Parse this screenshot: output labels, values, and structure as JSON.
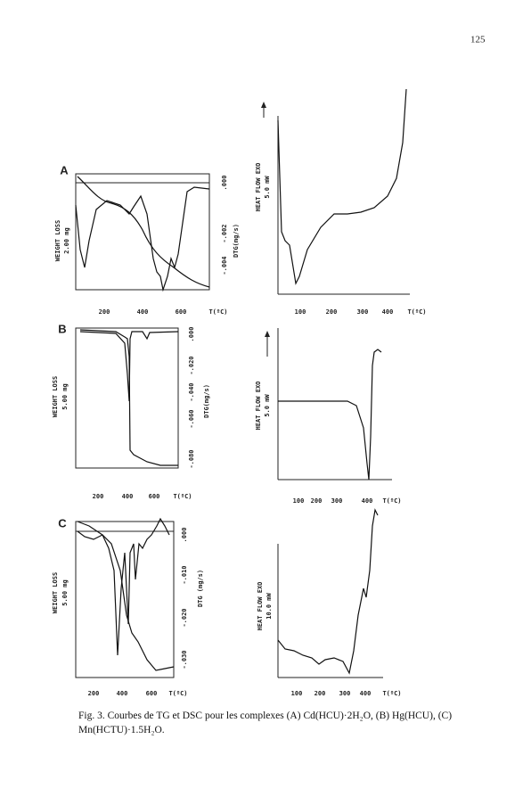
{
  "page_number": "125",
  "panels": [
    {
      "label": "A",
      "tg": {
        "ylabel": "WEIGHT LOSS",
        "scale": "2.00 mg",
        "y2label": "DTG(mg/s)",
        "y2ticks": [
          ".000",
          "-.002",
          "-.004"
        ],
        "xticks": [
          "200",
          "400",
          "600"
        ],
        "xlabel": "T(ºC)"
      },
      "dsc": {
        "ylabel": "HEAT FLOW EXO",
        "scale": "5.0 mW",
        "xticks": [
          "100",
          "200",
          "300",
          "400"
        ],
        "xlabel": "T(ºC)"
      }
    },
    {
      "label": "B",
      "tg": {
        "ylabel": "WEIGHT LOSS",
        "scale": "5.00 mg",
        "y2label": "DTG(mg/s)",
        "y2ticks": [
          ".000",
          "-.020",
          "-.040",
          "-.060",
          "-.080"
        ],
        "xticks": [
          "200",
          "400",
          "600"
        ],
        "xlabel": "T(ºC)"
      },
      "dsc": {
        "ylabel": "HEAT FLOW EXO",
        "scale": "5.0 mW",
        "xticks": [
          "100",
          "200",
          "300",
          "400"
        ],
        "xlabel": "T(ºC)"
      }
    },
    {
      "label": "C",
      "tg": {
        "ylabel": "WEIGHT LOSS",
        "scale": "5.00 mg",
        "y2label": "DTG (mg/s)",
        "y2ticks": [
          ".000",
          "-.010",
          "-.020",
          "-.030"
        ],
        "xticks": [
          "200",
          "400",
          "600"
        ],
        "xlabel": "T(ºC)"
      },
      "dsc": {
        "ylabel": "HEAT FLOW EXO",
        "scale": "10.0 mW",
        "xticks": [
          "100",
          "200",
          "300",
          "400"
        ],
        "xlabel": "T(ºC)"
      }
    }
  ],
  "caption": "Fig. 3. Courbes de TG et DSC pour les complexes (A) Cd(HCU)·2H₂O, (B) Hg(HCU), (C) Mn(HCTU)·1.5H₂O."
}
